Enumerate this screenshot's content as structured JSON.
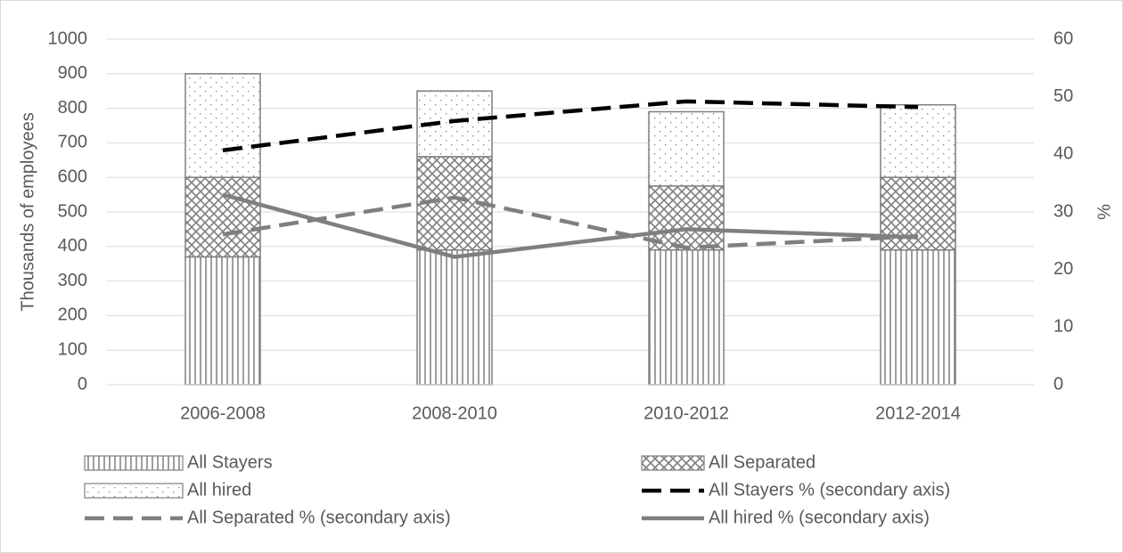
{
  "chart_data": {
    "type": "combo",
    "categories": [
      "2006-2008",
      "2008-2010",
      "2010-2012",
      "2012-2014"
    ],
    "y_label": "Thousands of employees",
    "y2_label": "%",
    "ylim": [
      0,
      1000
    ],
    "yticks": [
      0,
      100,
      200,
      300,
      400,
      500,
      600,
      700,
      800,
      900,
      1000
    ],
    "y2lim": [
      0,
      60
    ],
    "y2ticks": [
      0,
      10,
      20,
      30,
      40,
      50,
      60
    ],
    "grid": true,
    "legend": "bottom",
    "series": [
      {
        "name": "All Stayers",
        "type": "bar",
        "pattern": "vertical",
        "color": "#7f7f7f",
        "values": [
          370,
          390,
          390,
          390
        ]
      },
      {
        "name": "All Separated",
        "type": "bar",
        "pattern": "crosshatch",
        "color": "#7f7f7f",
        "values": [
          230,
          270,
          185,
          210
        ]
      },
      {
        "name": "All hired",
        "type": "bar",
        "pattern": "dots",
        "color": "#7f7f7f",
        "values": [
          300,
          190,
          215,
          210
        ]
      },
      {
        "name": "All Stayers % (secondary axis)",
        "type": "line",
        "dash": "dashed",
        "axis": "y2",
        "color": "#000000",
        "values": [
          40.7,
          45.8,
          49.2,
          48.2
        ]
      },
      {
        "name": "All Separated % (secondary axis)",
        "type": "line",
        "dash": "dashed",
        "axis": "y2",
        "color": "#7f7f7f",
        "values": [
          26.1,
          32.5,
          23.8,
          25.8
        ]
      },
      {
        "name": "All hired % (secondary axis)",
        "type": "line",
        "dash": "solid",
        "axis": "y2",
        "color": "#7f7f7f",
        "values": [
          33,
          22.2,
          27,
          25.6
        ]
      }
    ]
  }
}
